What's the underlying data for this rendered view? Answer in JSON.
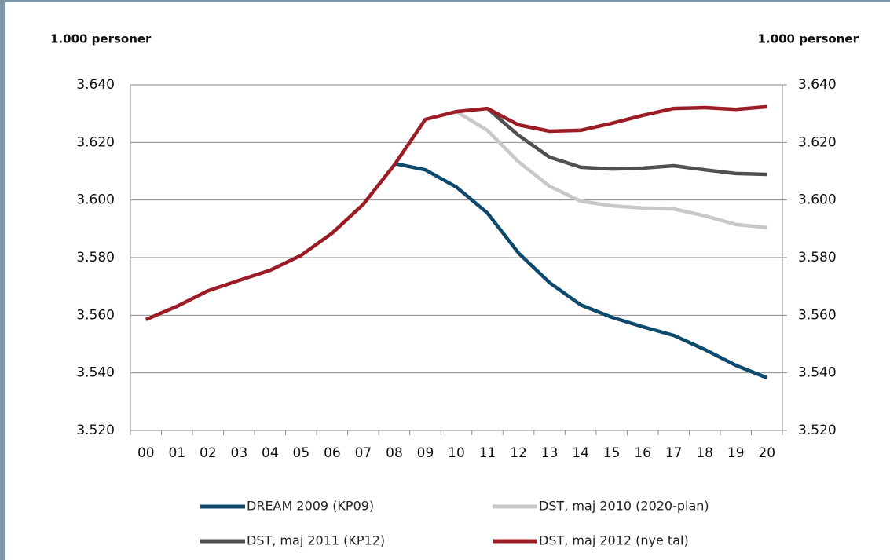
{
  "chart_data": {
    "type": "line",
    "y_label": "1.000 personer",
    "y2_label": "1.000 personer",
    "categories": [
      "00",
      "01",
      "02",
      "03",
      "04",
      "05",
      "06",
      "07",
      "08",
      "09",
      "10",
      "11",
      "12",
      "13",
      "14",
      "15",
      "16",
      "17",
      "18",
      "19",
      "20"
    ],
    "ylim": [
      3520,
      3640
    ],
    "yticks": [
      {
        "value": 3520,
        "label": "3.520"
      },
      {
        "value": 3540,
        "label": "3.540"
      },
      {
        "value": 3560,
        "label": "3.560"
      },
      {
        "value": 3580,
        "label": "3.580"
      },
      {
        "value": 3600,
        "label": "3.600"
      },
      {
        "value": 3620,
        "label": "3.620"
      },
      {
        "value": 3640,
        "label": "3.640"
      }
    ],
    "y2lim": [
      3520,
      3640
    ],
    "y2ticks": [
      {
        "value": 3520,
        "label": "3.520"
      },
      {
        "value": 3540,
        "label": "3.540"
      },
      {
        "value": 3560,
        "label": "3.560"
      },
      {
        "value": 3580,
        "label": "3.580"
      },
      {
        "value": 3600,
        "label": "3.600"
      },
      {
        "value": 3620,
        "label": "3.620"
      },
      {
        "value": 3640,
        "label": "3.640"
      }
    ],
    "grid": true,
    "series": [
      {
        "name": "DREAM 2009 (KP09)",
        "color": "#0d4a6e",
        "values": [
          null,
          null,
          null,
          null,
          null,
          null,
          null,
          null,
          3612.7,
          3610.5,
          3604.5,
          3595.5,
          3581.6,
          3571.3,
          3563.6,
          3559.3,
          3556.0,
          3553.0,
          3548.1,
          3542.6,
          3538.3
        ]
      },
      {
        "name": "DST, maj 2010 (2020-plan)",
        "color": "#c8c8c8",
        "values": [
          null,
          null,
          null,
          null,
          null,
          null,
          null,
          null,
          null,
          null,
          3630.7,
          3624.2,
          3613.3,
          3604.8,
          3599.6,
          3598.0,
          3597.2,
          3596.9,
          3594.5,
          3591.5,
          3590.4
        ]
      },
      {
        "name": "DST, maj 2011 (KP12)",
        "color": "#505050",
        "values": [
          null,
          null,
          null,
          null,
          null,
          null,
          null,
          null,
          null,
          null,
          null,
          3631.8,
          3622.5,
          3614.9,
          3611.4,
          3610.8,
          3611.1,
          3611.9,
          3610.5,
          3609.2,
          3608.9
        ]
      },
      {
        "name": "DST, maj 2012 (nye tal)",
        "color": "#9b1c24",
        "values": [
          3558.5,
          3563.1,
          3568.5,
          3572.1,
          3575.6,
          3580.8,
          3588.5,
          3598.5,
          3612.2,
          3628.0,
          3630.7,
          3631.8,
          3626.1,
          3623.9,
          3624.2,
          3626.6,
          3629.4,
          3631.8,
          3632.1,
          3631.5,
          3632.4
        ]
      }
    ]
  }
}
